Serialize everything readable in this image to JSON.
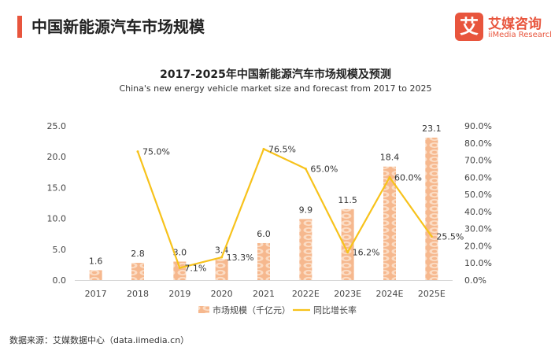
{
  "header": {
    "title": "中国新能源汽车市场规模",
    "logo_mark": "艾",
    "logo_cn": "艾媒咨询",
    "logo_en": "iiMedia Research"
  },
  "chart_data": {
    "type": "bar+line",
    "title": "2017-2025年中国新能源汽车市场规模及预测",
    "subtitle": "China's new energy vehicle market size and forecast from 2017 to 2025",
    "categories": [
      "2017",
      "2018",
      "2019",
      "2020",
      "2021",
      "2022E",
      "2023E",
      "2024E",
      "2025E"
    ],
    "series": [
      {
        "name": "市场规模（千亿元）",
        "type": "bar",
        "axis": "left",
        "values": [
          1.6,
          2.8,
          3.0,
          3.4,
          6.0,
          9.9,
          11.5,
          18.4,
          23.1
        ],
        "labels": [
          "1.6",
          "2.8",
          "3.0",
          "3.4",
          "6.0",
          "9.9",
          "11.5",
          "18.4",
          "23.1"
        ],
        "color": "#f6b88e"
      },
      {
        "name": "同比增长率",
        "type": "line",
        "axis": "right",
        "values": [
          null,
          75.0,
          7.1,
          13.3,
          76.5,
          65.0,
          16.2,
          60.0,
          25.5
        ],
        "labels": [
          "",
          "75.0%",
          "7.1%",
          "13.3%",
          "76.5%",
          "65.0%",
          "16.2%",
          "60.0%",
          "25.5%"
        ],
        "color": "#f7c21b"
      }
    ],
    "y_left": {
      "min": 0,
      "max": 25,
      "ticks": [
        "0.0",
        "5.0",
        "10.0",
        "15.0",
        "20.0",
        "25.0"
      ]
    },
    "y_right": {
      "min": 0,
      "max": 90,
      "ticks": [
        "0.0%",
        "10.0%",
        "20.0%",
        "30.0%",
        "40.0%",
        "50.0%",
        "60.0%",
        "70.0%",
        "80.0%",
        "90.0%"
      ]
    },
    "grid": false,
    "legend_position": "bottom"
  },
  "footer": {
    "source": "数据来源：艾媒数据中心（data.iimedia.cn）"
  }
}
